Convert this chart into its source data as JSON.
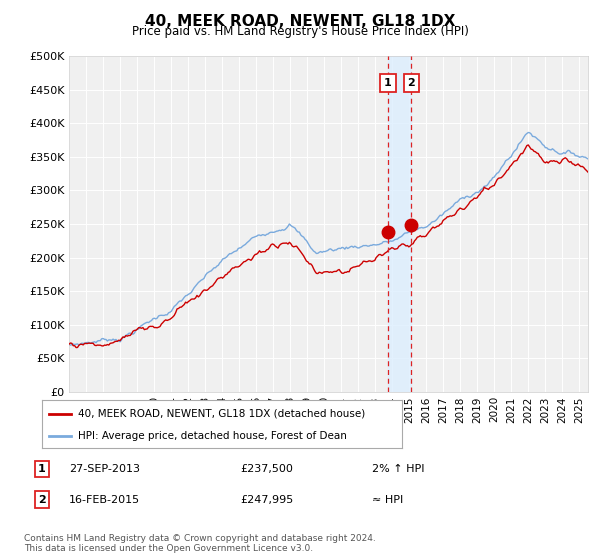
{
  "title": "40, MEEK ROAD, NEWENT, GL18 1DX",
  "subtitle": "Price paid vs. HM Land Registry's House Price Index (HPI)",
  "hpi_color": "#7aaadd",
  "price_color": "#cc0000",
  "marker_color": "#cc0000",
  "ylim": [
    0,
    500000
  ],
  "yticks": [
    0,
    50000,
    100000,
    150000,
    200000,
    250000,
    300000,
    350000,
    400000,
    450000,
    500000
  ],
  "ytick_labels": [
    "£0",
    "£50K",
    "£100K",
    "£150K",
    "£200K",
    "£250K",
    "£300K",
    "£350K",
    "£400K",
    "£450K",
    "£500K"
  ],
  "xlim_start": 1995.0,
  "xlim_end": 2025.5,
  "transaction1_x": 2013.74,
  "transaction1_y": 237500,
  "transaction1_label": "1",
  "transaction1_date": "27-SEP-2013",
  "transaction1_price": "£237,500",
  "transaction1_hpi": "2% ↑ HPI",
  "transaction2_x": 2015.12,
  "transaction2_y": 247995,
  "transaction2_label": "2",
  "transaction2_date": "16-FEB-2015",
  "transaction2_price": "£247,995",
  "transaction2_hpi": "≈ HPI",
  "legend_line1": "40, MEEK ROAD, NEWENT, GL18 1DX (detached house)",
  "legend_line2": "HPI: Average price, detached house, Forest of Dean",
  "footnote": "Contains HM Land Registry data © Crown copyright and database right 2024.\nThis data is licensed under the Open Government Licence v3.0.",
  "background_color": "#ffffff",
  "plot_bg_color": "#f0f0f0",
  "span_color": "#ddeeff",
  "vline_color": "#dd2222"
}
